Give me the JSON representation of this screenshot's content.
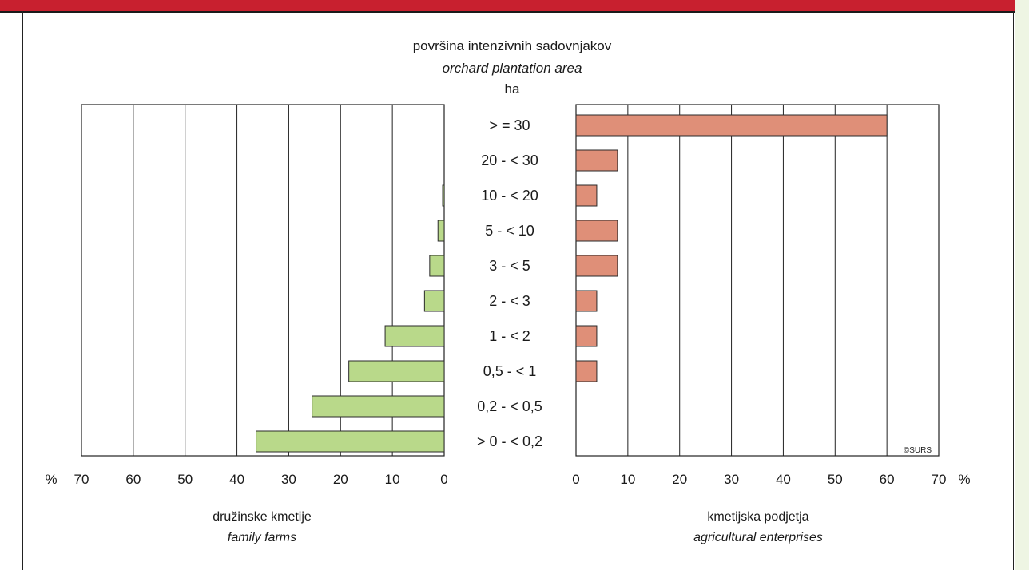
{
  "colors": {
    "frame_bar": "#c8202f",
    "side_strip": "#eef5e3",
    "family_bars": "#b9d98a",
    "enterprise_bars": "#df8f78",
    "grid": "#222222"
  },
  "chart_data": {
    "type": "bar",
    "orientation": "horizontal",
    "layout": "back-to-back",
    "title": "površina intenzivnih sadovnjakov",
    "title_en": "orchard plantation area",
    "category_unit": "ha",
    "categories": [
      ">  = 30",
      "20 - < 30",
      "10 - < 20",
      "5 - < 10",
      "3 - < 5",
      "2 - < 3",
      "1 - < 2",
      "0,5 - < 1",
      "0,2 - < 0,5",
      "> 0 - < 0,2"
    ],
    "series": [
      {
        "name": "družinske kmetije",
        "name_en": "family farms",
        "side": "left",
        "values": [
          0,
          0,
          0.3,
          1.2,
          2.8,
          3.8,
          11.4,
          18.4,
          25.5,
          36.3
        ]
      },
      {
        "name": "kmetijska podjetja",
        "name_en": "agricultural enterprises",
        "side": "right",
        "values": [
          60,
          8,
          4,
          8,
          8,
          4,
          4,
          4,
          0,
          0
        ]
      }
    ],
    "xlim": [
      0,
      70
    ],
    "ticks": [
      0,
      10,
      20,
      30,
      40,
      50,
      60,
      70
    ],
    "unit_label": "%",
    "grid": true,
    "credit": "©SURS"
  }
}
